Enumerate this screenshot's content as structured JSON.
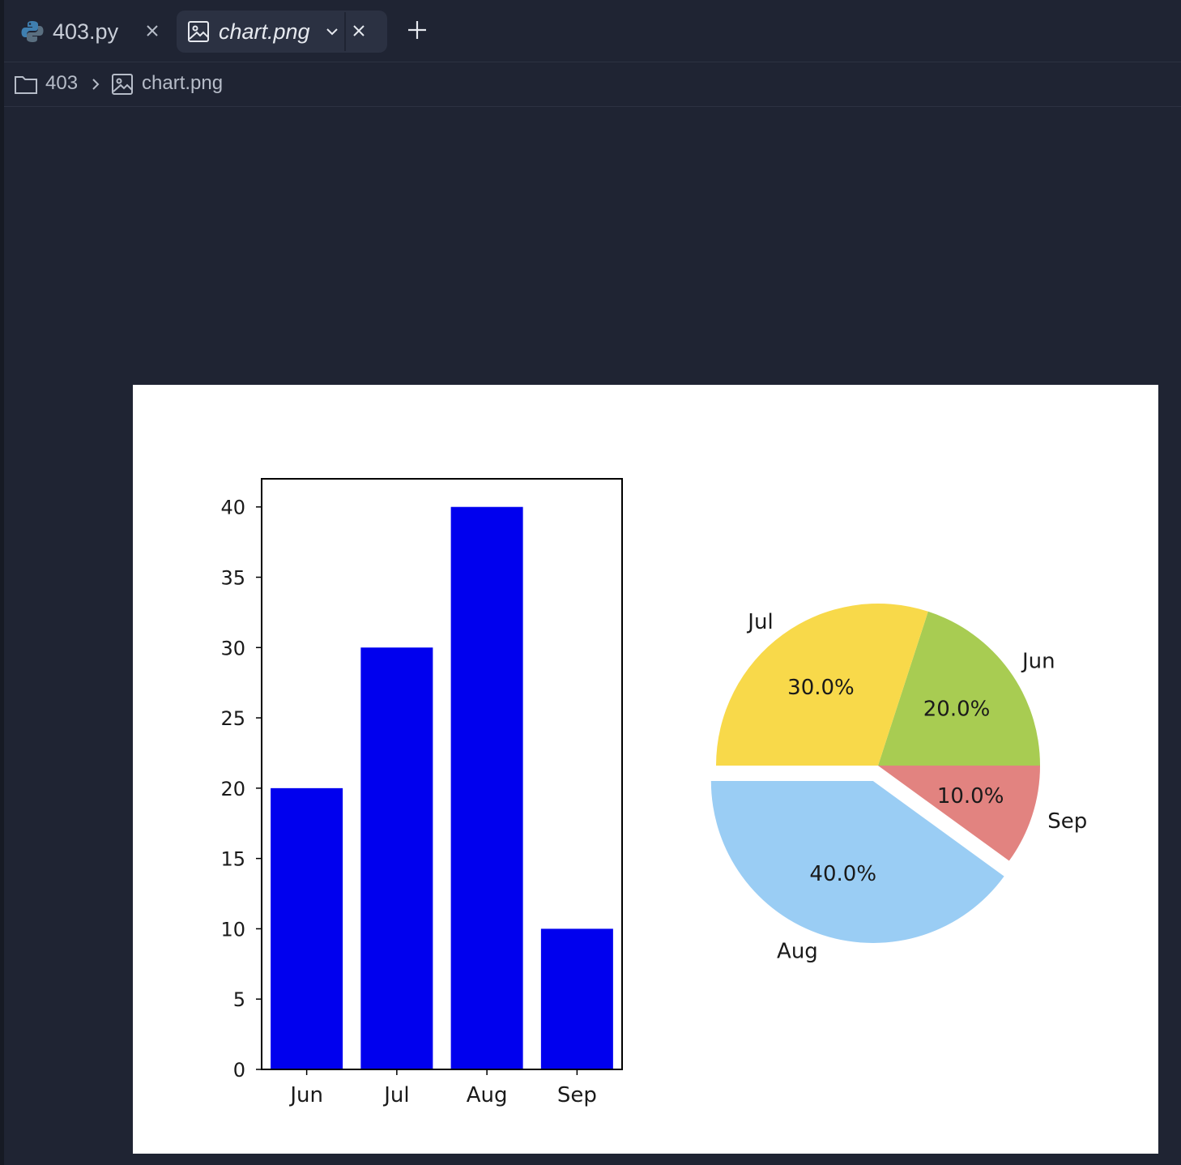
{
  "tabs": [
    {
      "label": "403.py",
      "icon": "python-icon"
    },
    {
      "label": "chart.png",
      "icon": "image-icon"
    }
  ],
  "breadcrumb": {
    "folder": "403",
    "file": "chart.png"
  },
  "chart_data": [
    {
      "type": "bar",
      "categories": [
        "Jun",
        "Jul",
        "Aug",
        "Sep"
      ],
      "values": [
        20,
        30,
        40,
        10
      ],
      "ylim": [
        0,
        42
      ],
      "yticks": [
        0,
        5,
        10,
        15,
        20,
        25,
        30,
        35,
        40
      ],
      "color": "#0000ee"
    },
    {
      "type": "pie",
      "labels": [
        "Jun",
        "Jul",
        "Aug",
        "Sep"
      ],
      "values": [
        20,
        30,
        40,
        10
      ],
      "pct_labels": [
        "20.0%",
        "30.0%",
        "40.0%",
        "10.0%"
      ],
      "colors": [
        "#a8cc52",
        "#f8d94a",
        "#9acdf4",
        "#e28380"
      ],
      "exploded": "Aug"
    }
  ]
}
